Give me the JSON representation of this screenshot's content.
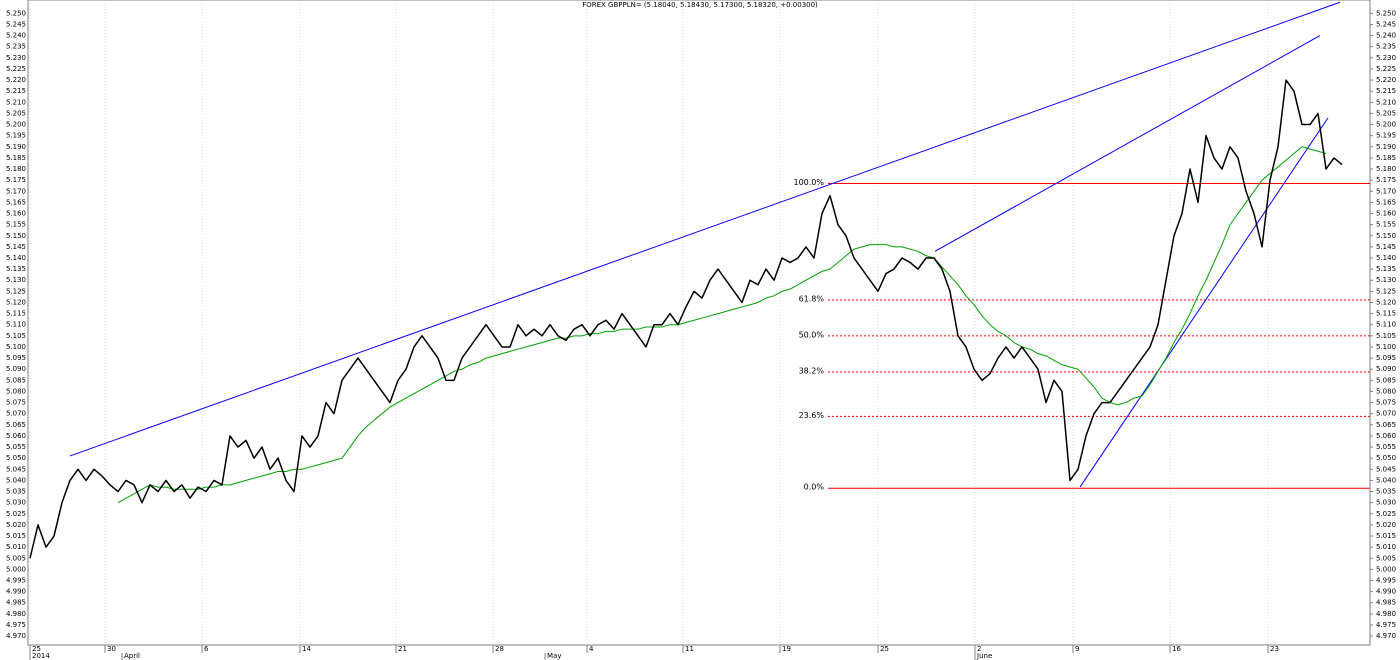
{
  "chart_data": {
    "type": "line",
    "title": "FOREX GBPPLN= (5.18040, 5.18430, 5.17300, 5.18320, +0.00300)",
    "xlim": [
      -0.25,
      167.5
    ],
    "ylim": [
      4.966,
      5.256
    ],
    "grid": true,
    "xticks": [
      {
        "value": 0,
        "label": "25"
      },
      {
        "value": 9.375,
        "label": "30"
      },
      {
        "value": 21.5,
        "label": "6"
      },
      {
        "value": 33.75,
        "label": "14"
      },
      {
        "value": 45.75,
        "label": "21"
      },
      {
        "value": 57.875,
        "label": "28"
      },
      {
        "value": 69.625,
        "label": "4"
      },
      {
        "value": 81.625,
        "label": "11"
      },
      {
        "value": 93.75,
        "label": "19"
      },
      {
        "value": 106,
        "label": "25"
      },
      {
        "value": 118.125,
        "label": "2"
      },
      {
        "value": 130.375,
        "label": "9"
      },
      {
        "value": 142.5,
        "label": "16"
      },
      {
        "value": 154.75,
        "label": "23"
      }
    ],
    "month_labels": [
      {
        "value": 0,
        "label": "2014"
      },
      {
        "value": 11.5,
        "label": "April"
      },
      {
        "value": 64.375,
        "label": "May"
      },
      {
        "value": 118.125,
        "label": "June"
      }
    ],
    "yticks": [
      {
        "value": 4.97,
        "label": "4.970"
      },
      4.975,
      {
        "value": 4.98,
        "label": "4.980"
      },
      4.985,
      {
        "value": 4.99,
        "label": "4.990"
      },
      4.995,
      {
        "value": 5,
        "label": "5.000"
      },
      5.005,
      {
        "value": 5.01,
        "label": "5.010"
      },
      5.015,
      {
        "value": 5.02,
        "label": "5.020"
      },
      5.025,
      {
        "value": 5.03,
        "label": "5.030"
      },
      5.035,
      {
        "value": 5.04,
        "label": "5.040"
      },
      5.045,
      {
        "value": 5.05,
        "label": "5.050"
      },
      5.055,
      {
        "value": 5.06,
        "label": "5.060"
      },
      5.065,
      {
        "value": 5.07,
        "label": "5.070"
      },
      5.075,
      {
        "value": 5.08,
        "label": "5.080"
      },
      5.085,
      {
        "value": 5.09,
        "label": "5.090"
      },
      5.095,
      {
        "value": 5.1,
        "label": "5.100"
      },
      5.105,
      {
        "value": 5.11,
        "label": "5.110"
      },
      5.115,
      {
        "value": 5.12,
        "label": "5.120"
      },
      5.125,
      {
        "value": 5.13,
        "label": "5.130"
      },
      5.135,
      {
        "value": 5.14,
        "label": "5.140"
      },
      5.145,
      {
        "value": 5.15,
        "label": "5.150"
      },
      5.155,
      {
        "value": 5.16,
        "label": "5.160"
      },
      5.165,
      {
        "value": 5.17,
        "label": "5.170"
      },
      5.175,
      {
        "value": 5.18,
        "label": "5.180"
      },
      5.185,
      {
        "value": 5.19,
        "label": "5.190"
      },
      5.195,
      {
        "value": 5.2,
        "label": "5.200"
      },
      5.205,
      {
        "value": 5.21,
        "label": "5.210"
      },
      5.215,
      {
        "value": 5.22,
        "label": "5.220"
      },
      5.225,
      {
        "value": 5.23,
        "label": "5.230"
      },
      5.235,
      {
        "value": 5.24,
        "label": "5.240"
      },
      5.245,
      {
        "value": 5.25,
        "label": "5.250"
      }
    ],
    "series": [
      {
        "color": "#000000",
        "values": [
          5.005,
          5.02,
          5.01,
          5.015,
          5.03,
          5.04,
          5.045,
          5.04,
          5.045,
          5.042,
          5.038,
          5.035,
          5.04,
          5.038,
          5.03,
          5.038,
          5.035,
          5.04,
          5.035,
          5.038,
          5.032,
          5.037,
          5.035,
          5.04,
          5.038,
          5.06,
          5.055,
          5.058,
          5.05,
          5.055,
          5.045,
          5.05,
          5.04,
          5.035,
          5.06,
          5.055,
          5.06,
          5.075,
          5.07,
          5.085,
          5.09,
          5.095,
          5.09,
          5.085,
          5.08,
          5.075,
          5.085,
          5.09,
          5.1,
          5.105,
          5.1,
          5.095,
          5.085,
          5.085,
          5.095,
          5.1,
          5.105,
          5.11,
          5.105,
          5.1,
          5.1,
          5.11,
          5.105,
          5.108,
          5.105,
          5.11,
          5.105,
          5.103,
          5.108,
          5.11,
          5.105,
          5.11,
          5.112,
          5.108,
          5.115,
          5.11,
          5.105,
          5.1,
          5.11,
          5.11,
          5.115,
          5.11,
          5.118,
          5.125,
          5.122,
          5.13,
          5.135,
          5.13,
          5.125,
          5.12,
          5.13,
          5.128,
          5.135,
          5.13,
          5.14,
          5.138,
          5.14,
          5.145,
          5.14,
          5.16,
          5.168,
          5.155,
          5.15,
          5.14,
          5.135,
          5.13,
          5.125,
          5.133,
          5.135,
          5.14,
          5.138,
          5.135,
          5.14,
          5.14,
          5.135,
          5.125,
          5.105,
          5.1,
          5.09,
          5.085,
          5.088,
          5.095,
          5.1,
          5.095,
          5.1,
          5.095,
          5.09,
          5.075,
          5.085,
          5.08,
          5.04,
          5.045,
          5.06,
          5.07,
          5.075,
          5.075,
          5.08,
          5.085,
          5.09,
          5.095,
          5.1,
          5.11,
          5.13,
          5.15,
          5.16,
          5.18,
          5.165,
          5.195,
          5.185,
          5.18,
          5.19,
          5.185,
          5.17,
          5.16,
          5.145,
          5.175,
          5.19,
          5.22,
          5.215,
          5.2,
          5.2,
          5.205,
          5.18,
          5.185,
          5.182
        ]
      },
      {
        "color": "#00a000",
        "values": [
          null,
          null,
          null,
          null,
          null,
          null,
          null,
          null,
          null,
          null,
          null,
          5.03,
          5.032,
          5.034,
          5.036,
          5.038,
          5.037,
          5.037,
          5.036,
          5.036,
          5.036,
          5.036,
          5.037,
          5.037,
          5.038,
          5.038,
          5.039,
          5.04,
          5.041,
          5.042,
          5.043,
          5.044,
          5.044,
          5.045,
          5.045,
          5.046,
          5.047,
          5.048,
          5.049,
          5.05,
          5.055,
          5.06,
          5.064,
          5.067,
          5.07,
          5.073,
          5.075,
          5.077,
          5.079,
          5.081,
          5.083,
          5.085,
          5.087,
          5.089,
          5.09,
          5.092,
          5.093,
          5.095,
          5.096,
          5.097,
          5.098,
          5.099,
          5.1,
          5.101,
          5.102,
          5.103,
          5.104,
          5.104,
          5.105,
          5.105,
          5.106,
          5.106,
          5.107,
          5.107,
          5.108,
          5.108,
          5.108,
          5.109,
          5.109,
          5.109,
          5.11,
          5.11,
          5.111,
          5.112,
          5.113,
          5.114,
          5.115,
          5.116,
          5.117,
          5.118,
          5.119,
          5.12,
          5.122,
          5.123,
          5.125,
          5.126,
          5.128,
          5.13,
          5.132,
          5.134,
          5.135,
          5.138,
          5.141,
          5.144,
          5.145,
          5.146,
          5.146,
          5.146,
          5.145,
          5.145,
          5.144,
          5.143,
          5.141,
          5.14,
          5.136,
          5.132,
          5.128,
          5.123,
          5.119,
          5.114,
          5.11,
          5.107,
          5.105,
          5.102,
          5.1,
          5.099,
          5.097,
          5.096,
          5.094,
          5.092,
          5.091,
          5.09,
          5.086,
          5.082,
          5.077,
          5.075,
          5.074,
          5.075,
          5.077,
          5.078,
          5.083,
          5.089,
          5.095,
          5.102,
          5.108,
          5.115,
          5.123,
          5.13,
          5.138,
          5.146,
          5.155,
          5.16,
          5.165,
          5.17,
          5.175,
          5.178,
          5.181,
          5.184,
          5.187,
          5.19,
          5.189,
          5.188,
          5.187,
          null,
          null
        ]
      }
    ],
    "trendlines": {
      "color": "#0000ff",
      "lines": [
        {
          "x": [
            5,
            163.75
          ],
          "values": [
            5.051,
            5.255
          ]
        },
        {
          "x": [
            113.125,
            161.25
          ],
          "values": [
            5.143,
            5.24
          ]
        },
        {
          "x": [
            131.25,
            162.25
          ],
          "values": [
            5.037,
            5.203
          ]
        }
      ]
    },
    "fibonacci": {
      "color": "#ff0000",
      "start_x": 99.75,
      "levels": [
        {
          "label": "100.0%",
          "value": 5.1735
        },
        {
          "label": "61.8%",
          "value": 5.1212
        },
        {
          "label": "50.0%",
          "value": 5.105
        },
        {
          "label": "38.2%",
          "value": 5.0888
        },
        {
          "label": "23.6%",
          "value": 5.0688
        },
        {
          "label": "0.0%",
          "value": 5.0365
        }
      ]
    }
  }
}
